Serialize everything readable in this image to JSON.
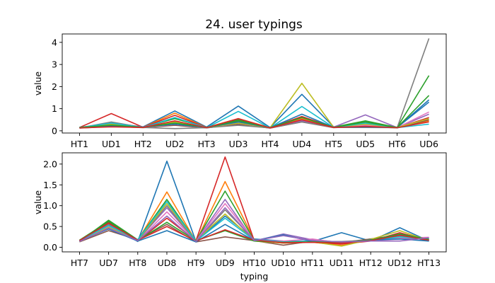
{
  "chart_data": [
    {
      "type": "line",
      "title": "24. user typings",
      "xlabel": "",
      "ylabel": "value",
      "categories": [
        "HT1",
        "UD1",
        "HT2",
        "UD2",
        "HT3",
        "UD3",
        "HT4",
        "UD4",
        "HT5",
        "UD5",
        "HT6",
        "UD6"
      ],
      "ylim": [
        -0.1,
        4.38
      ],
      "yticks": [
        0,
        1,
        2,
        3,
        4
      ],
      "grid": false,
      "series": [
        {
          "color": "#1f77b4",
          "values": [
            0.15,
            0.3,
            0.18,
            0.9,
            0.17,
            1.12,
            0.15,
            1.65,
            0.18,
            0.3,
            0.15,
            1.4
          ]
        },
        {
          "color": "#ff7f0e",
          "values": [
            0.14,
            0.25,
            0.16,
            0.8,
            0.15,
            0.55,
            0.14,
            0.55,
            0.16,
            0.25,
            0.14,
            0.45
          ]
        },
        {
          "color": "#2ca02c",
          "values": [
            0.16,
            0.28,
            0.17,
            0.55,
            0.16,
            0.5,
            0.15,
            0.5,
            0.17,
            0.45,
            0.15,
            2.5
          ]
        },
        {
          "color": "#d62728",
          "values": [
            0.15,
            0.78,
            0.16,
            0.7,
            0.15,
            0.45,
            0.14,
            0.65,
            0.16,
            0.2,
            0.14,
            0.6
          ]
        },
        {
          "color": "#9467bd",
          "values": [
            0.15,
            0.35,
            0.18,
            0.4,
            0.16,
            0.4,
            0.15,
            0.45,
            0.17,
            0.72,
            0.15,
            0.75
          ]
        },
        {
          "color": "#8c564b",
          "values": [
            0.12,
            0.2,
            0.14,
            0.25,
            0.13,
            0.3,
            0.12,
            0.4,
            0.14,
            0.2,
            0.13,
            0.5
          ]
        },
        {
          "color": "#e377c2",
          "values": [
            0.14,
            0.25,
            0.15,
            0.3,
            0.14,
            0.35,
            0.13,
            0.5,
            0.15,
            0.25,
            0.14,
            0.85
          ]
        },
        {
          "color": "#7f7f7f",
          "values": [
            0.13,
            0.4,
            0.15,
            0.1,
            0.14,
            0.25,
            0.13,
            0.4,
            0.15,
            0.15,
            0.14,
            4.18
          ]
        },
        {
          "color": "#bcbd22",
          "values": [
            0.15,
            0.3,
            0.16,
            0.4,
            0.15,
            0.35,
            0.14,
            2.15,
            0.16,
            0.3,
            0.15,
            0.55
          ]
        },
        {
          "color": "#17becf",
          "values": [
            0.14,
            0.35,
            0.15,
            0.6,
            0.14,
            0.88,
            0.13,
            1.1,
            0.15,
            0.35,
            0.14,
            0.3
          ]
        },
        {
          "color": "#1f77b4",
          "values": [
            0.16,
            0.22,
            0.17,
            0.3,
            0.15,
            0.4,
            0.14,
            0.75,
            0.16,
            0.18,
            0.15,
            1.3
          ]
        },
        {
          "color": "#2ca02c",
          "values": [
            0.15,
            0.26,
            0.16,
            0.35,
            0.15,
            0.45,
            0.14,
            0.6,
            0.16,
            0.4,
            0.15,
            1.6
          ]
        },
        {
          "color": "#d62728",
          "values": [
            0.13,
            0.18,
            0.15,
            0.45,
            0.14,
            0.55,
            0.13,
            0.5,
            0.15,
            0.2,
            0.14,
            0.4
          ]
        }
      ]
    },
    {
      "type": "line",
      "title": "",
      "xlabel": "typing",
      "ylabel": "value",
      "categories": [
        "HT7",
        "UD7",
        "HT8",
        "UD8",
        "HT9",
        "UD9",
        "HT10",
        "UD10",
        "HT11",
        "UD11",
        "HT12",
        "UD12",
        "HT13"
      ],
      "ylim": [
        -0.11,
        2.27
      ],
      "yticks": [
        0.0,
        0.5,
        1.0,
        1.5,
        2.0,
        2.5
      ],
      "ytick_labels": [
        "0.0",
        "0.5",
        "1.0",
        "1.5",
        "2.0"
      ],
      "grid": false,
      "series": [
        {
          "color": "#1f77b4",
          "values": [
            0.15,
            0.55,
            0.14,
            2.07,
            0.14,
            0.75,
            0.2,
            0.15,
            0.14,
            0.35,
            0.15,
            0.47,
            0.15
          ]
        },
        {
          "color": "#ff7f0e",
          "values": [
            0.16,
            0.5,
            0.16,
            1.33,
            0.14,
            1.58,
            0.18,
            0.12,
            0.12,
            0.05,
            0.18,
            0.3,
            0.2
          ]
        },
        {
          "color": "#2ca02c",
          "values": [
            0.14,
            0.65,
            0.18,
            1.15,
            0.15,
            1.35,
            0.17,
            0.14,
            0.13,
            0.1,
            0.2,
            0.25,
            0.18
          ]
        },
        {
          "color": "#d62728",
          "values": [
            0.17,
            0.6,
            0.15,
            0.7,
            0.16,
            2.17,
            0.16,
            0.1,
            0.12,
            0.08,
            0.15,
            0.35,
            0.16
          ]
        },
        {
          "color": "#9467bd",
          "values": [
            0.15,
            0.45,
            0.17,
            0.95,
            0.15,
            1.15,
            0.15,
            0.32,
            0.18,
            0.12,
            0.16,
            0.2,
            0.22
          ]
        },
        {
          "color": "#8c564b",
          "values": [
            0.13,
            0.4,
            0.18,
            0.55,
            0.13,
            0.25,
            0.16,
            0.05,
            0.15,
            0.12,
            0.2,
            0.3,
            0.15
          ]
        },
        {
          "color": "#e377c2",
          "values": [
            0.16,
            0.5,
            0.15,
            0.85,
            0.15,
            1.05,
            0.17,
            0.15,
            0.2,
            0.1,
            0.18,
            0.22,
            0.24
          ]
        },
        {
          "color": "#7f7f7f",
          "values": [
            0.15,
            0.55,
            0.16,
            1.0,
            0.14,
            0.9,
            0.18,
            0.12,
            0.14,
            0.14,
            0.17,
            0.28,
            0.18
          ]
        },
        {
          "color": "#bcbd22",
          "values": [
            0.14,
            0.48,
            0.17,
            1.05,
            0.16,
            0.8,
            0.15,
            0.1,
            0.13,
            0.03,
            0.19,
            0.4,
            0.16
          ]
        },
        {
          "color": "#17becf",
          "values": [
            0.16,
            0.52,
            0.18,
            1.1,
            0.15,
            0.7,
            0.17,
            0.13,
            0.15,
            0.12,
            0.16,
            0.25,
            0.2
          ]
        },
        {
          "color": "#1f77b4",
          "values": [
            0.15,
            0.44,
            0.15,
            0.4,
            0.13,
            0.55,
            0.16,
            0.3,
            0.14,
            0.1,
            0.18,
            0.2,
            0.15
          ]
        },
        {
          "color": "#2ca02c",
          "values": [
            0.17,
            0.62,
            0.16,
            0.6,
            0.16,
            0.4,
            0.15,
            0.12,
            0.13,
            0.12,
            0.17,
            0.32,
            0.19
          ]
        },
        {
          "color": "#d62728",
          "values": [
            0.16,
            0.58,
            0.17,
            0.5,
            0.15,
            0.42,
            0.17,
            0.11,
            0.12,
            0.1,
            0.16,
            0.29,
            0.17
          ]
        },
        {
          "color": "#9467bd",
          "values": [
            0.14,
            0.46,
            0.16,
            0.75,
            0.14,
            0.95,
            0.16,
            0.28,
            0.16,
            0.13,
            0.15,
            0.15,
            0.23
          ]
        }
      ]
    }
  ]
}
